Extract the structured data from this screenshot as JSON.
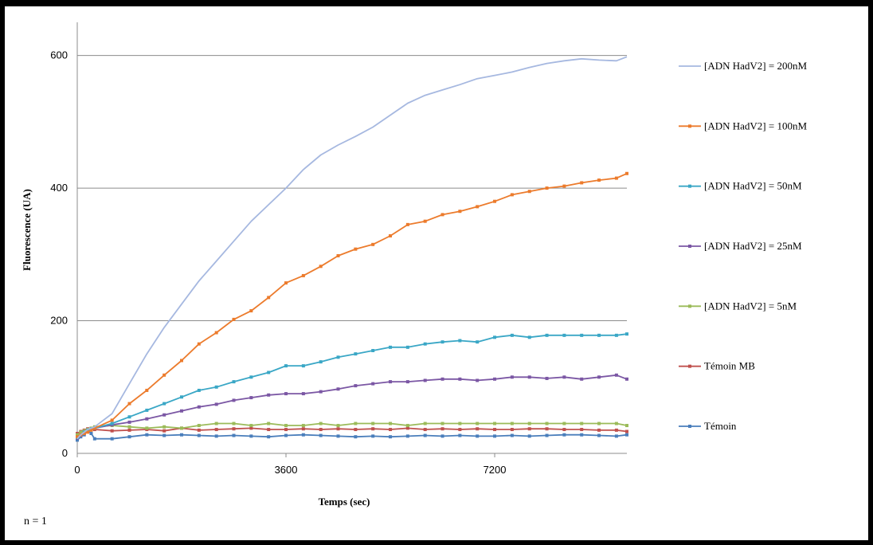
{
  "chart_data": {
    "type": "line",
    "xlabel": "Temps (sec)",
    "ylabel": "Fluorescence (UA)",
    "xlim": [
      0,
      9480
    ],
    "ylim": [
      0,
      650
    ],
    "xticks": [
      0,
      3600,
      7200
    ],
    "yticks": [
      0,
      200,
      400,
      600
    ],
    "grid": "horizontal",
    "legend": "right",
    "x": [
      0,
      60,
      120,
      180,
      240,
      300,
      600,
      900,
      1200,
      1500,
      1800,
      2100,
      2400,
      2700,
      3000,
      3300,
      3600,
      3900,
      4200,
      4500,
      4800,
      5100,
      5400,
      5700,
      6000,
      6300,
      6600,
      6900,
      7200,
      7500,
      7800,
      8100,
      8400,
      8700,
      9000,
      9300,
      9480
    ],
    "series": [
      {
        "name": "[ADN HadV2] = 200nM",
        "color": "#a6b8e0",
        "marker": false,
        "values": [
          22,
          28,
          32,
          36,
          38,
          40,
          60,
          105,
          150,
          190,
          225,
          260,
          290,
          320,
          350,
          375,
          400,
          428,
          450,
          465,
          478,
          492,
          510,
          528,
          540,
          548,
          556,
          565,
          570,
          575,
          582,
          588,
          592,
          595,
          593,
          592,
          598
        ]
      },
      {
        "name": "[ADN HadV2] = 100nM",
        "color": "#ec7b2c",
        "marker": true,
        "values": [
          25,
          28,
          30,
          32,
          35,
          38,
          50,
          75,
          95,
          118,
          140,
          165,
          182,
          202,
          215,
          235,
          257,
          268,
          282,
          298,
          308,
          315,
          328,
          345,
          350,
          360,
          365,
          372,
          380,
          390,
          395,
          400,
          403,
          408,
          412,
          415,
          422
        ]
      },
      {
        "name": "[ADN HadV2] = 50nM",
        "color": "#3aa7c6",
        "marker": true,
        "values": [
          24,
          28,
          32,
          35,
          37,
          38,
          45,
          55,
          65,
          75,
          85,
          95,
          100,
          108,
          115,
          122,
          132,
          132,
          138,
          145,
          150,
          155,
          160,
          160,
          165,
          168,
          170,
          168,
          175,
          178,
          175,
          178,
          178,
          178,
          178,
          178,
          180
        ]
      },
      {
        "name": "[ADN HadV2] = 25nM",
        "color": "#7b57a4",
        "marker": true,
        "values": [
          23,
          27,
          30,
          33,
          36,
          38,
          43,
          47,
          52,
          58,
          64,
          70,
          74,
          80,
          84,
          88,
          90,
          90,
          93,
          97,
          102,
          105,
          108,
          108,
          110,
          112,
          112,
          110,
          112,
          115,
          115,
          113,
          115,
          112,
          115,
          118,
          112
        ]
      },
      {
        "name": "[ADN HadV2] = 5nM",
        "color": "#9bbb59",
        "marker": true,
        "values": [
          28,
          32,
          34,
          36,
          38,
          40,
          42,
          40,
          38,
          40,
          38,
          42,
          45,
          45,
          42,
          45,
          42,
          42,
          45,
          42,
          45,
          45,
          45,
          42,
          45,
          45,
          45,
          45,
          45,
          45,
          45,
          45,
          45,
          45,
          45,
          45,
          42
        ]
      },
      {
        "name": "Témoin MB",
        "color": "#c0504d",
        "marker": true,
        "values": [
          30,
          33,
          35,
          37,
          36,
          36,
          34,
          35,
          36,
          34,
          38,
          35,
          36,
          37,
          38,
          36,
          36,
          37,
          36,
          37,
          36,
          37,
          36,
          38,
          36,
          37,
          36,
          37,
          36,
          36,
          37,
          37,
          36,
          36,
          35,
          35,
          33
        ]
      },
      {
        "name": "Témoin",
        "color": "#4a7ebb",
        "marker": true,
        "values": [
          20,
          25,
          28,
          35,
          30,
          22,
          22,
          25,
          28,
          27,
          28,
          27,
          26,
          27,
          26,
          25,
          27,
          28,
          27,
          26,
          25,
          26,
          25,
          26,
          27,
          26,
          27,
          26,
          26,
          27,
          26,
          27,
          28,
          28,
          27,
          26,
          28
        ]
      }
    ]
  },
  "note": "n = 1"
}
